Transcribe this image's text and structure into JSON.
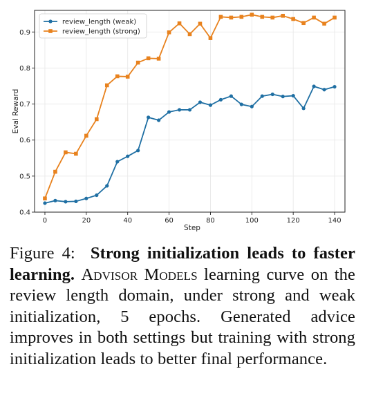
{
  "chart_data": {
    "type": "line",
    "xlabel": "Step",
    "ylabel": "Eval Reward",
    "xlim": [
      -5,
      145
    ],
    "ylim": [
      0.4,
      0.96
    ],
    "x_ticks": [
      "0",
      "20",
      "40",
      "60",
      "80",
      "100",
      "120",
      "140"
    ],
    "y_ticks": [
      "0.4",
      "0.5",
      "0.6",
      "0.7",
      "0.8",
      "0.9"
    ],
    "grid": true,
    "legend_position": "top-left",
    "x": [
      0,
      5,
      10,
      15,
      20,
      25,
      30,
      35,
      40,
      45,
      50,
      55,
      60,
      65,
      70,
      75,
      80,
      85,
      90,
      95,
      100,
      105,
      110,
      115,
      120,
      125,
      130,
      135,
      140
    ],
    "series": [
      {
        "name": "review_length (weak)",
        "color": "#1f6fa3",
        "marker": "circle",
        "values": [
          0.425,
          0.432,
          0.429,
          0.43,
          0.438,
          0.447,
          0.473,
          0.54,
          0.555,
          0.571,
          0.663,
          0.655,
          0.678,
          0.684,
          0.684,
          0.705,
          0.697,
          0.712,
          0.722,
          0.699,
          0.693,
          0.722,
          0.727,
          0.721,
          0.723,
          0.688,
          0.749,
          0.74,
          0.748
        ]
      },
      {
        "name": "review_length (strong)",
        "color": "#e8821e",
        "marker": "square",
        "values": [
          0.438,
          0.512,
          0.566,
          0.562,
          0.612,
          0.658,
          0.752,
          0.777,
          0.776,
          0.815,
          0.827,
          0.826,
          0.899,
          0.924,
          0.894,
          0.923,
          0.883,
          0.942,
          0.94,
          0.942,
          0.948,
          0.942,
          0.94,
          0.945,
          0.936,
          0.925,
          0.94,
          0.923,
          0.94
        ]
      }
    ]
  },
  "caption": {
    "figure_label": "Figure 4:",
    "bold_text": "Strong initialization leads to faster learning.",
    "smallcaps_text": "Advisor Models",
    "body_text": "learning curve on the review length domain, under strong and weak initialization, 5 epochs. Generated advice improves in both settings but training with strong initialization leads to better final performance."
  }
}
